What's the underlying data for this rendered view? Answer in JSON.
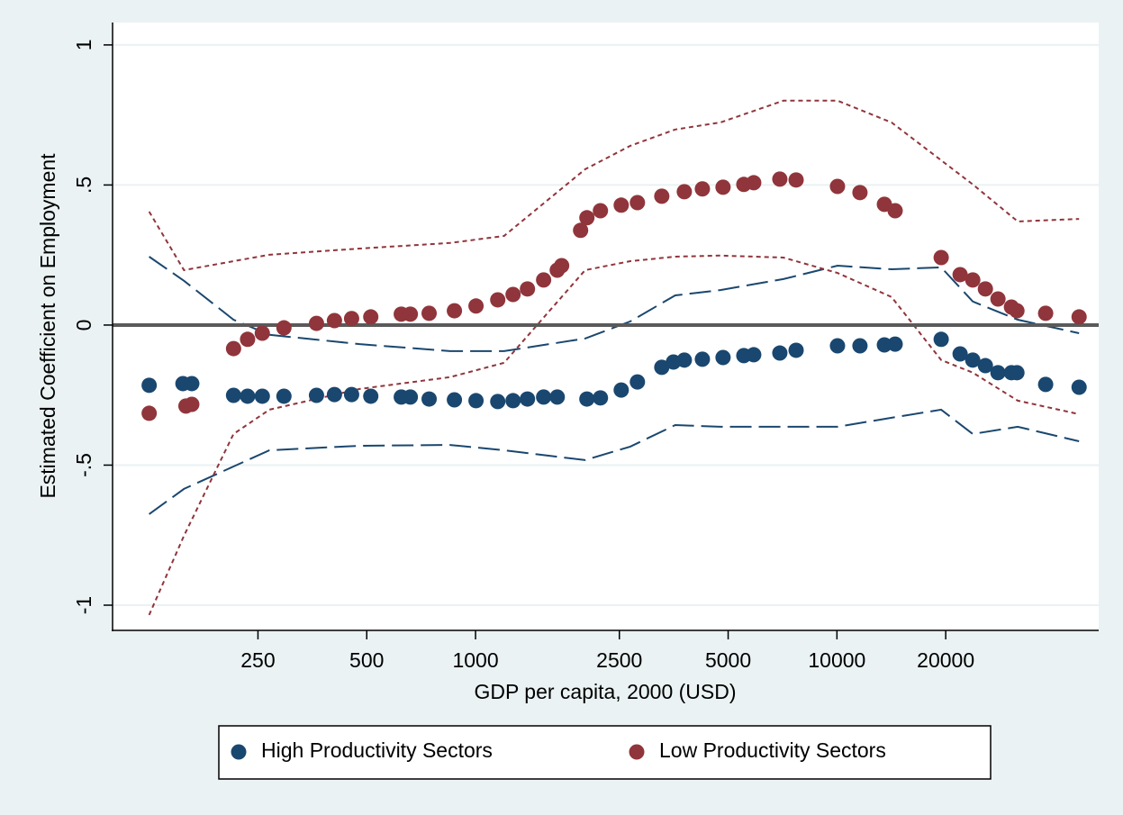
{
  "chart_data": {
    "type": "scatter",
    "x_label": "GDP per capita, 2000 (USD)",
    "y_label": "Estimated Coefficient on Employment",
    "xscale": "log",
    "xlim": [
      99,
      53000
    ],
    "ylim": [
      -1.09,
      1.08
    ],
    "xticks": [
      250,
      500,
      1000,
      2500,
      5000,
      10000,
      20000
    ],
    "yticks": [
      {
        "value": -1,
        "label": "-1"
      },
      {
        "value": -0.5,
        "label": "-.5"
      },
      0,
      {
        "value": 0.5,
        "label": ".5"
      },
      1
    ],
    "grid": true,
    "reference_line": 0,
    "legend": "bottom",
    "series": [
      {
        "name": "High Productivity Sectors",
        "color": "#1a476f",
        "x": [
          125,
          155,
          164,
          214,
          234,
          257,
          295,
          363,
          407,
          454,
          513,
          623,
          660,
          744,
          874,
          1003,
          1152,
          1270,
          1392,
          1543,
          1683,
          2033,
          2216,
          2530,
          2805,
          3276,
          3529,
          3782,
          4243,
          4840,
          5525,
          5885,
          6950,
          7710,
          10035,
          11580,
          13530,
          14490,
          19430,
          21920,
          23760,
          25750,
          27900,
          30400,
          31480,
          37800,
          46780
        ],
        "values": [
          -0.215,
          -0.209,
          -0.209,
          -0.251,
          -0.254,
          -0.254,
          -0.254,
          -0.251,
          -0.248,
          -0.248,
          -0.254,
          -0.257,
          -0.257,
          -0.264,
          -0.267,
          -0.27,
          -0.273,
          -0.27,
          -0.264,
          -0.257,
          -0.257,
          -0.264,
          -0.26,
          -0.232,
          -0.203,
          -0.151,
          -0.132,
          -0.125,
          -0.122,
          -0.116,
          -0.109,
          -0.106,
          -0.1,
          -0.09,
          -0.074,
          -0.074,
          -0.071,
          -0.068,
          -0.051,
          -0.103,
          -0.125,
          -0.145,
          -0.17,
          -0.17,
          -0.17,
          -0.212,
          -0.222
        ]
      },
      {
        "name": "Low Productivity Sectors",
        "color": "#90353b",
        "x": [
          125,
          158,
          164,
          214,
          234,
          257,
          295,
          363,
          407,
          454,
          513,
          623,
          660,
          744,
          874,
          1003,
          1152,
          1270,
          1392,
          1543,
          1683,
          1731,
          1953,
          2033,
          2216,
          2530,
          2805,
          3276,
          3782,
          4243,
          4840,
          5525,
          5885,
          6950,
          7710,
          10035,
          11580,
          13530,
          14490,
          19430,
          21920,
          23760,
          25750,
          27900,
          30400,
          31480,
          37800,
          46780
        ],
        "values": [
          -0.315,
          -0.289,
          -0.283,
          -0.084,
          -0.051,
          -0.029,
          -0.01,
          0.006,
          0.016,
          0.023,
          0.029,
          0.039,
          0.039,
          0.042,
          0.051,
          0.068,
          0.09,
          0.109,
          0.129,
          0.161,
          0.196,
          0.212,
          0.338,
          0.383,
          0.408,
          0.428,
          0.437,
          0.46,
          0.476,
          0.486,
          0.492,
          0.502,
          0.508,
          0.521,
          0.518,
          0.495,
          0.473,
          0.431,
          0.408,
          0.241,
          0.18,
          0.161,
          0.129,
          0.093,
          0.064,
          0.051,
          0.042,
          0.029
        ]
      }
    ],
    "lines": [
      {
        "color": "#1a476f",
        "dash": "long",
        "x": [
          125,
          156,
          214,
          269,
          478,
          850,
          1199,
          2010,
          2680,
          3570,
          4757,
          7110,
          10035,
          14160,
          19430,
          23760,
          31650,
          46780
        ],
        "values": [
          0.244,
          0.158,
          0.019,
          -0.035,
          -0.068,
          -0.093,
          -0.093,
          -0.048,
          0.013,
          0.106,
          0.125,
          0.164,
          0.212,
          0.199,
          0.206,
          0.084,
          0.019,
          -0.029
        ]
      },
      {
        "color": "#1a476f",
        "dash": "long",
        "x": [
          125,
          156,
          214,
          269,
          478,
          850,
          1199,
          2010,
          2680,
          3570,
          4757,
          7110,
          10035,
          14160,
          19430,
          23760,
          31650,
          46780
        ],
        "values": [
          -0.675,
          -0.585,
          -0.505,
          -0.447,
          -0.431,
          -0.428,
          -0.447,
          -0.482,
          -0.434,
          -0.357,
          -0.363,
          -0.363,
          -0.363,
          -0.331,
          -0.302,
          -0.389,
          -0.363,
          -0.415
        ]
      },
      {
        "color": "#90353b",
        "dash": "short",
        "x": [
          125,
          156,
          214,
          269,
          478,
          850,
          1199,
          2010,
          2680,
          3570,
          4757,
          7110,
          10035,
          14160,
          19430,
          23760,
          31650,
          46780
        ],
        "values": [
          0.405,
          0.196,
          0.228,
          0.251,
          0.273,
          0.293,
          0.318,
          0.556,
          0.64,
          0.698,
          0.723,
          0.801,
          0.801,
          0.723,
          0.588,
          0.502,
          0.37,
          0.379
        ]
      },
      {
        "color": "#90353b",
        "dash": "short",
        "x": [
          125,
          156,
          214,
          269,
          478,
          850,
          1199,
          2010,
          2680,
          3570,
          4757,
          7110,
          10035,
          14160,
          19430,
          23760,
          31650,
          46780
        ],
        "values": [
          -1.035,
          -0.752,
          -0.389,
          -0.302,
          -0.228,
          -0.186,
          -0.135,
          0.196,
          0.228,
          0.244,
          0.248,
          0.241,
          0.186,
          0.1,
          -0.125,
          -0.17,
          -0.27,
          -0.318
        ]
      }
    ]
  }
}
